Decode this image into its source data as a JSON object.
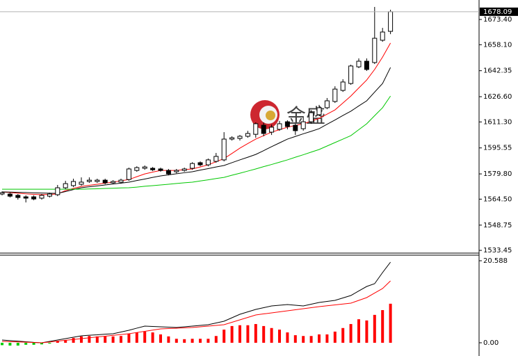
{
  "watermark": "金盛",
  "chart_data": [
    {
      "type": "candlestick",
      "open": [
        1567.6,
        1567.6,
        1566.8,
        1565.9,
        1565.9,
        1565.1,
        1566.3,
        1567.2,
        1571.4,
        1572.7,
        1573.5,
        1575.2,
        1575.2,
        1576.0,
        1574.4,
        1574.8,
        1576.4,
        1581.9,
        1583.2,
        1583.2,
        1582.8,
        1581.9,
        1581.1,
        1581.9,
        1583.2,
        1586.6,
        1585.3,
        1587.4,
        1588.3,
        1600.9,
        1601.3,
        1602.6,
        1603.8,
        1609.3,
        1605.1,
        1606.8,
        1611.4,
        1609.3,
        1607.2,
        1611.4,
        1615.7,
        1619.9,
        1623.7,
        1630.4,
        1634.6,
        1644.7,
        1648.1,
        1647.3,
        1660.8,
        1666.2
      ],
      "high": [
        1569.2,
        1568.4,
        1567.6,
        1566.8,
        1566.8,
        1567.6,
        1568.4,
        1573.1,
        1575.6,
        1576.9,
        1577.7,
        1577.7,
        1576.9,
        1576.9,
        1576.0,
        1576.9,
        1583.6,
        1584.4,
        1584.9,
        1584.0,
        1583.6,
        1582.8,
        1582.8,
        1583.6,
        1586.9,
        1587.4,
        1589.1,
        1592.5,
        1605.1,
        1602.6,
        1603.4,
        1605.9,
        1611.0,
        1611.0,
        1609.7,
        1611.9,
        1612.3,
        1610.2,
        1614.0,
        1618.5,
        1621.6,
        1625.8,
        1632.9,
        1637.2,
        1646.0,
        1649.8,
        1649.8,
        1681.0,
        1668.3,
        1679.3
      ],
      "low": [
        1566.8,
        1565.5,
        1564.2,
        1562.5,
        1563.8,
        1564.2,
        1565.5,
        1566.3,
        1570.6,
        1571.8,
        1572.7,
        1574.4,
        1574.4,
        1573.5,
        1573.5,
        1573.9,
        1575.6,
        1581.1,
        1582.3,
        1581.5,
        1581.1,
        1578.9,
        1580.2,
        1581.1,
        1582.3,
        1584.4,
        1584.4,
        1586.6,
        1587.4,
        1600.0,
        1600.0,
        1601.7,
        1601.7,
        1602.6,
        1603.4,
        1605.9,
        1606.8,
        1603.4,
        1606.0,
        1610.2,
        1614.8,
        1619.0,
        1622.8,
        1629.5,
        1633.8,
        1643.9,
        1642.2,
        1646.4,
        1659.9,
        1664.5
      ],
      "close": [
        1568.4,
        1566.3,
        1565.5,
        1565.1,
        1564.6,
        1566.8,
        1567.6,
        1571.4,
        1573.9,
        1575.2,
        1574.8,
        1576.0,
        1576.0,
        1574.4,
        1575.2,
        1576.0,
        1582.8,
        1583.6,
        1584.0,
        1582.3,
        1581.9,
        1579.8,
        1581.9,
        1582.8,
        1586.1,
        1585.3,
        1588.3,
        1590.4,
        1600.9,
        1601.7,
        1602.6,
        1604.3,
        1610.2,
        1604.3,
        1608.1,
        1610.2,
        1608.5,
        1606.0,
        1611.4,
        1616.9,
        1619.9,
        1624.1,
        1631.2,
        1635.5,
        1645.2,
        1648.1,
        1643.1,
        1662.0,
        1665.8,
        1678.09
      ],
      "up_color": "#ffffff",
      "down_color": "#000000",
      "lines": [
        {
          "color": "#ff0000",
          "values": [
            1568.9,
            1568.5,
            1568.1,
            1567.7,
            1567.4,
            1567.2,
            1567.4,
            1567.6,
            1569.7,
            1571.0,
            1572.2,
            1572.9,
            1573.5,
            1574.2,
            1574.8,
            1575.6,
            1576.4,
            1578.1,
            1579.8,
            1580.9,
            1581.9,
            1581.9,
            1581.9,
            1582.4,
            1582.8,
            1584.0,
            1585.3,
            1587.2,
            1589.1,
            1592.2,
            1595.4,
            1598.2,
            1600.9,
            1603.0,
            1605.1,
            1606.6,
            1608.1,
            1609.2,
            1610.2,
            1611.8,
            1613.5,
            1616.0,
            1618.6,
            1622.8,
            1627.0,
            1631.9,
            1636.7,
            1643.1,
            1650.6,
            1659.1
          ]
        },
        {
          "color": "#000000",
          "values": [
            1568.9,
            1568.8,
            1568.6,
            1568.5,
            1568.3,
            1568.2,
            1568.1,
            1568.0,
            1569.1,
            1570.3,
            1571.4,
            1572.0,
            1572.5,
            1573.1,
            1573.7,
            1574.2,
            1574.8,
            1575.8,
            1576.7,
            1577.7,
            1578.6,
            1579.2,
            1579.9,
            1580.5,
            1581.1,
            1582.1,
            1583.0,
            1584.0,
            1584.9,
            1586.6,
            1588.3,
            1589.9,
            1591.6,
            1593.9,
            1596.3,
            1598.6,
            1600.9,
            1602.5,
            1604.1,
            1605.6,
            1607.2,
            1609.9,
            1612.5,
            1615.2,
            1617.8,
            1621.0,
            1624.1,
            1629.4,
            1634.6,
            1644.3
          ]
        },
        {
          "color": "#00c800",
          "values": [
            1570.5,
            1570.5,
            1570.5,
            1570.5,
            1570.5,
            1570.5,
            1570.5,
            1570.5,
            1570.5,
            1570.5,
            1570.5,
            1570.7,
            1570.8,
            1571.0,
            1571.1,
            1571.3,
            1571.4,
            1571.8,
            1572.3,
            1572.7,
            1573.1,
            1573.5,
            1574.0,
            1574.4,
            1574.8,
            1575.5,
            1576.2,
            1577.0,
            1577.7,
            1579.0,
            1580.2,
            1581.5,
            1582.8,
            1584.2,
            1585.5,
            1586.9,
            1588.3,
            1589.9,
            1591.4,
            1593.0,
            1594.6,
            1596.7,
            1598.8,
            1600.9,
            1603.0,
            1606.6,
            1610.2,
            1615.1,
            1619.9,
            1627.0
          ]
        }
      ],
      "last_price": 1678.09,
      "ylim": [
        1531.8,
        1685.2
      ],
      "yticks": [
        {
          "value": 1673.4,
          "label": "1673.40"
        },
        {
          "value": 1658.1,
          "label": "1658.10"
        },
        1642.35,
        {
          "value": 1626.6,
          "label": "1626.60"
        },
        {
          "value": 1611.3,
          "label": "1611.30"
        },
        1595.55,
        {
          "value": 1579.8,
          "label": "1579.80"
        },
        {
          "value": 1564.5,
          "label": "1564.50"
        },
        1548.75,
        1533.45
      ]
    },
    {
      "type": "macd",
      "histogram": [
        -0.6,
        -0.7,
        -0.7,
        -0.5,
        -0.5,
        -0.4,
        -0.2,
        0.35,
        0.7,
        1.2,
        1.6,
        1.7,
        1.6,
        1.6,
        1.6,
        1.7,
        2.3,
        2.6,
        2.8,
        2.6,
        2.1,
        1.6,
        1.0,
        0.9,
        1.0,
        1.0,
        1.0,
        1.7,
        3.3,
        4.2,
        4.4,
        4.4,
        4.7,
        4.2,
        3.7,
        3.3,
        2.6,
        1.9,
        1.7,
        1.7,
        2.1,
        2.1,
        2.8,
        3.7,
        4.7,
        5.9,
        5.6,
        7.0,
        8.2,
        9.8
      ],
      "up_color": "#ff0000",
      "down_color": "#00cc00",
      "lines": [
        {
          "color": "#000000",
          "values": [
            0.7,
            0.55,
            0.4,
            0.25,
            0.1,
            0,
            0.35,
            0.7,
            1.05,
            1.4,
            1.74,
            1.9,
            2.0,
            2.15,
            2.27,
            2.7,
            3.14,
            3.67,
            4.19,
            4.1,
            4.01,
            3.92,
            3.84,
            4.0,
            4.19,
            4.36,
            4.53,
            4.97,
            5.41,
            6.28,
            7.15,
            7.76,
            8.37,
            8.8,
            9.24,
            9.42,
            9.59,
            9.42,
            9.24,
            9.68,
            10.12,
            10.38,
            10.64,
            11.25,
            11.86,
            13.0,
            14.13,
            14.83,
            17.62,
            20.24
          ]
        },
        {
          "color": "#ff0000",
          "values": [
            0.35,
            0.28,
            0.21,
            0.14,
            0.07,
            0,
            0.2,
            0.42,
            0.62,
            0.83,
            1.04,
            1.25,
            1.46,
            1.66,
            1.87,
            2.07,
            2.27,
            2.58,
            2.88,
            3.19,
            3.49,
            3.58,
            3.66,
            3.75,
            3.84,
            4.01,
            4.19,
            4.36,
            4.53,
            5.15,
            5.76,
            6.37,
            6.98,
            7.25,
            7.51,
            7.77,
            8.02,
            8.28,
            8.54,
            8.8,
            9.07,
            9.29,
            9.5,
            9.72,
            9.94,
            10.64,
            11.34,
            12.48,
            13.61,
            15.53
          ]
        }
      ],
      "ylim": [
        -3.32,
        21.81
      ],
      "yticks": [
        20.588,
        {
          "value": 0,
          "label": "0.00"
        }
      ]
    }
  ]
}
